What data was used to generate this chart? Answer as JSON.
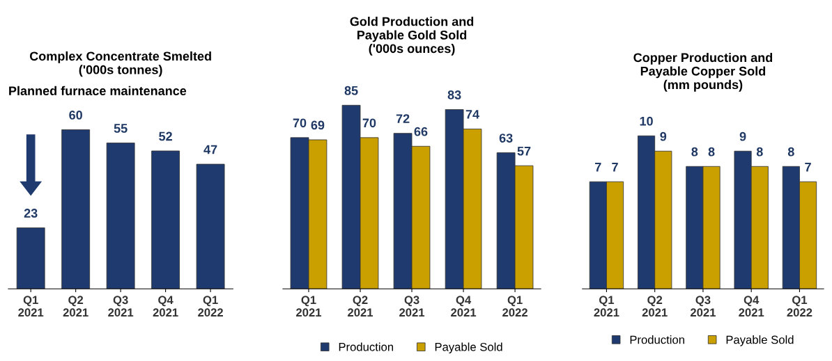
{
  "chart_data": [
    {
      "type": "bar",
      "title": "Complex Concentrate Smelted\n('000s tonnes)",
      "categories": [
        "Q1\n2021",
        "Q2\n2021",
        "Q3\n2021",
        "Q4\n2021",
        "Q1\n2022"
      ],
      "series": [
        {
          "color": "#1f3a6e",
          "values": [
            23,
            60,
            55,
            52,
            47
          ]
        }
      ],
      "data_labels": true,
      "annotations": [
        "Planned furnace maintenance"
      ],
      "legend": false
    },
    {
      "type": "bar",
      "title": "Gold Production and\nPayable Gold Sold\n('000s ounces)",
      "categories": [
        "Q1\n2021",
        "Q2\n2021",
        "Q3\n2021",
        "Q4\n2021",
        "Q1\n2022"
      ],
      "series": [
        {
          "name": "Production",
          "color": "#1f3a6e",
          "values": [
            70,
            85,
            72,
            83,
            63
          ]
        },
        {
          "name": "Payable Sold",
          "color": "#c9a000",
          "values": [
            69,
            70,
            66,
            74,
            57
          ]
        }
      ],
      "data_labels": true,
      "legend": "bottom"
    },
    {
      "type": "bar",
      "title": "Copper Production and\nPayable Copper Sold\n(mm pounds)",
      "categories": [
        "Q1\n2021",
        "Q2\n2021",
        "Q3\n2021",
        "Q4\n2021",
        "Q1\n2022"
      ],
      "series": [
        {
          "name": "Production",
          "color": "#1f3a6e",
          "values": [
            7,
            10,
            8,
            9,
            8
          ]
        },
        {
          "name": "Payable Sold",
          "color": "#c9a000",
          "values": [
            7,
            9,
            8,
            8,
            7
          ]
        }
      ],
      "data_labels": true,
      "legend": "bottom"
    }
  ]
}
